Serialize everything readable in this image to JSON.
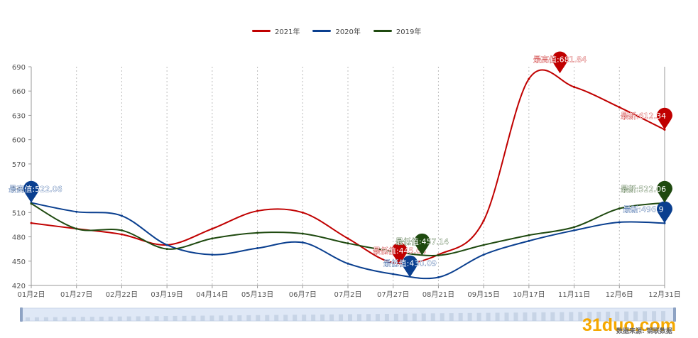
{
  "legend": [
    {
      "name": "2021年",
      "color": "#c00000"
    },
    {
      "name": "2020年",
      "color": "#0a3f8f"
    },
    {
      "name": "2019年",
      "color": "#1f4a10"
    }
  ],
  "chart_data": {
    "type": "line",
    "ylim": [
      420,
      690
    ],
    "yticks": [
      "420",
      "450",
      "480",
      "510",
      "540",
      "570",
      "600",
      "630",
      "660",
      "690"
    ],
    "xticks": [
      "01月2日",
      "01月27日",
      "02月22日",
      "03月19日",
      "04月14日",
      "05月13日",
      "06月7日",
      "07月2日",
      "07月27日",
      "08月21日",
      "09月15日",
      "10月17日",
      "11月11日",
      "12月6日",
      "12月31日"
    ],
    "series": [
      {
        "name": "2021年",
        "color": "#c00000",
        "x": [
          "01月2日",
          "01月27日",
          "02月22日",
          "03月19日",
          "04月14日",
          "05月13日",
          "06月7日",
          "07月2日",
          "07月27日",
          "08月21日",
          "09月15日",
          "10月17日",
          "11月11日",
          "12月6日",
          "12月31日"
        ],
        "values": [
          497,
          490,
          483,
          470,
          490,
          512,
          510,
          478,
          448,
          458,
          500,
          675,
          665,
          640,
          612.34
        ]
      },
      {
        "name": "2020年",
        "color": "#0a3f8f",
        "x": [
          "01月2日",
          "01月27日",
          "02月22日",
          "03月19日",
          "04月14日",
          "05月13日",
          "06月7日",
          "07月2日",
          "07月27日",
          "08月21日",
          "09月15日",
          "10月17日",
          "11月11日",
          "12月6日",
          "12月31日"
        ],
        "values": [
          522.06,
          511,
          506,
          470,
          458,
          466,
          473,
          447,
          434,
          430.09,
          458,
          475,
          488,
          498,
          496.9
        ]
      },
      {
        "name": "2019年",
        "color": "#1f4a10",
        "x": [
          "01月2日",
          "01月27日",
          "02月22日",
          "03月19日",
          "04月14日",
          "05月13日",
          "06月7日",
          "07月2日",
          "07月27日",
          "08月21日",
          "09月15日",
          "10月17日",
          "11月11日",
          "12月6日",
          "12月31日"
        ],
        "values": [
          521,
          490,
          488,
          465,
          478,
          485,
          484,
          472,
          462,
          457.14,
          470,
          482,
          492,
          515,
          522.06
        ]
      }
    ],
    "markers": [
      {
        "series": "2021年",
        "x": "11月1日",
        "value": 681.84,
        "label": "最高值:681.84",
        "color": "#c00000"
      },
      {
        "series": "2021年",
        "x": "12月31日",
        "value": 612.34,
        "label": "最新:612.34",
        "color": "#c00000"
      },
      {
        "series": "2021年",
        "x": "08月1日",
        "value": 445.64,
        "label": "最低值:445.64",
        "color": "#c00000"
      },
      {
        "series": "2020年",
        "x": "01月2日",
        "value": 522.06,
        "label": "最高值:522.06",
        "color": "#0a3f8f"
      },
      {
        "series": "2020年",
        "x": "08月7日",
        "value": 430.09,
        "label": "最低值:430.09",
        "color": "#0a3f8f"
      },
      {
        "series": "2020年",
        "x": "12月31日",
        "value": 496.9,
        "label": "最新:496.9",
        "color": "#0a3f8f"
      },
      {
        "series": "2019年",
        "x": "08月14日",
        "value": 457.14,
        "label": "最低值:457.14",
        "color": "#1f4a10"
      },
      {
        "series": "2019年",
        "x": "12月31日",
        "value": 522.06,
        "label": "最新:522.06",
        "color": "#1f4a10"
      }
    ]
  },
  "footer": {
    "brand": "31duo.com",
    "source": "数据来源: 钢联数据"
  }
}
